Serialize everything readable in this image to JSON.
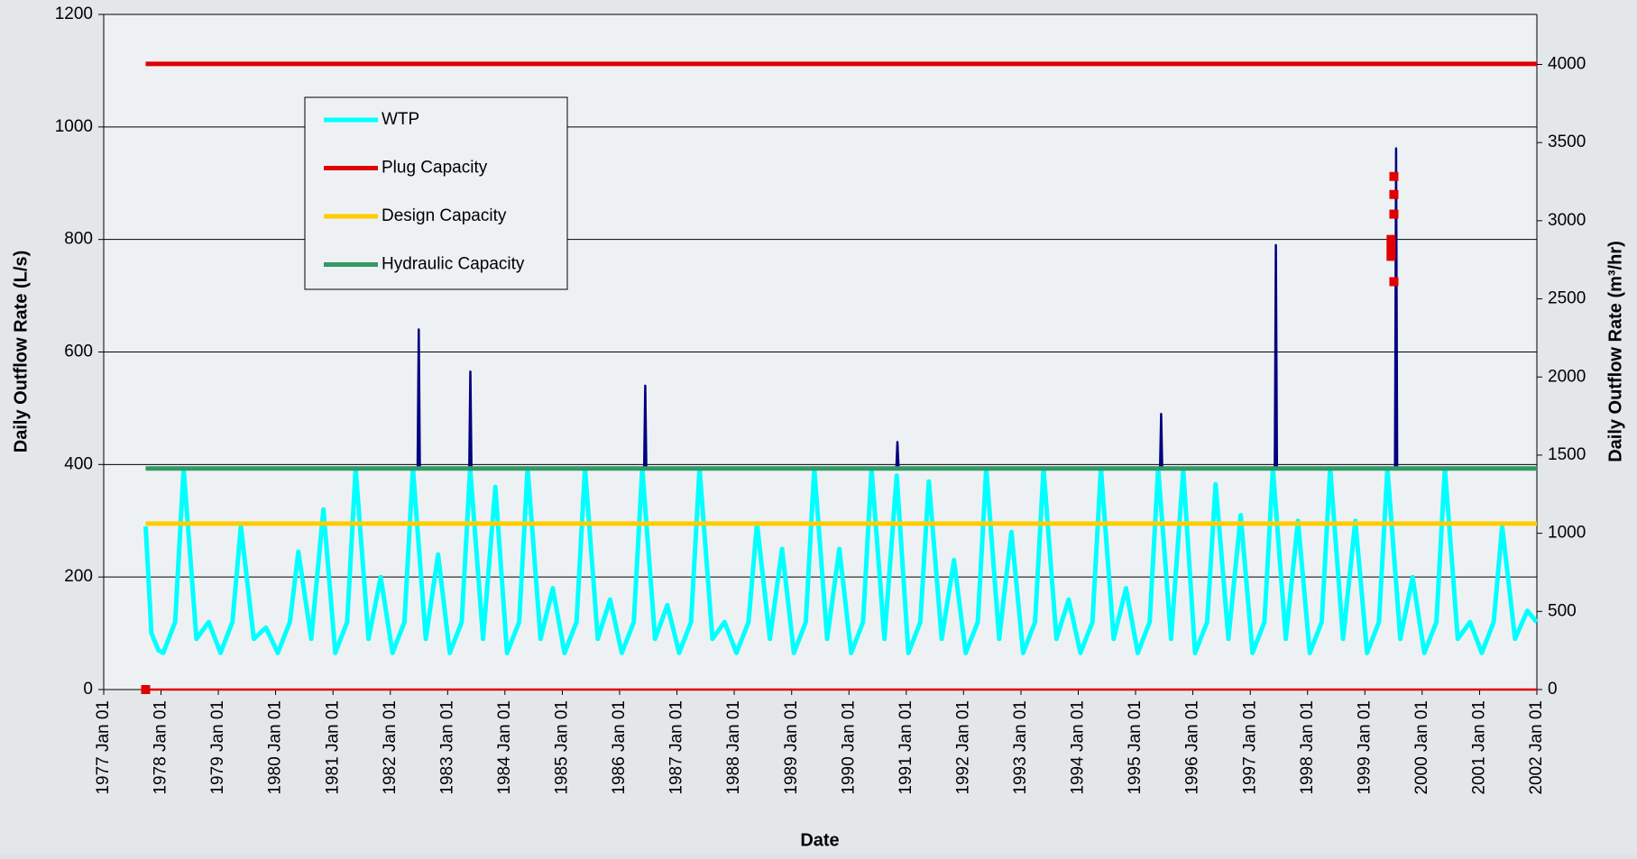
{
  "chart_data": {
    "type": "line",
    "x_label": "Date",
    "y_label": "Daily Outflow Rate (L/s)",
    "y2_label": "Daily Outflow Rate (m³/hr)",
    "xlim": [
      "1977-01-01",
      "2002-01-01"
    ],
    "xticks": [
      {
        "value": "1977-01-01",
        "label": "1977 Jan 01"
      },
      {
        "value": "1978-01-01",
        "label": "1978 Jan 01"
      },
      {
        "value": "1979-01-01",
        "label": "1979 Jan 01"
      },
      {
        "value": "1980-01-01",
        "label": "1980 Jan 01"
      },
      {
        "value": "1981-01-01",
        "label": "1981 Jan 01"
      },
      {
        "value": "1982-01-01",
        "label": "1982 Jan 01"
      },
      {
        "value": "1983-01-01",
        "label": "1983 Jan 01"
      },
      {
        "value": "1984-01-01",
        "label": "1984 Jan 01"
      },
      {
        "value": "1985-01-01",
        "label": "1985 Jan 01"
      },
      {
        "value": "1986-01-01",
        "label": "1986 Jan 01"
      },
      {
        "value": "1987-01-01",
        "label": "1987 Jan 01"
      },
      {
        "value": "1988-01-01",
        "label": "1988 Jan 01"
      },
      {
        "value": "1989-01-01",
        "label": "1989 Jan 01"
      },
      {
        "value": "1990-01-01",
        "label": "1990 Jan 01"
      },
      {
        "value": "1991-01-01",
        "label": "1991 Jan 01"
      },
      {
        "value": "1992-01-01",
        "label": "1992 Jan 01"
      },
      {
        "value": "1993-01-01",
        "label": "1993 Jan 01"
      },
      {
        "value": "1994-01-01",
        "label": "1994 Jan 01"
      },
      {
        "value": "1995-01-01",
        "label": "1995 Jan 01"
      },
      {
        "value": "1996-01-01",
        "label": "1996 Jan 01"
      },
      {
        "value": "1997-01-01",
        "label": "1997 Jan 01"
      },
      {
        "value": "1998-01-01",
        "label": "1998 Jan 01"
      },
      {
        "value": "1999-01-01",
        "label": "1999 Jan 01"
      },
      {
        "value": "2000-01-01",
        "label": "2000 Jan 01"
      },
      {
        "value": "2001-01-01",
        "label": "2001 Jan 01"
      },
      {
        "value": "2002-01-01",
        "label": "2002 Jan 01"
      }
    ],
    "ylim": [
      0,
      1200
    ],
    "yticks": [
      0,
      200,
      400,
      600,
      800,
      1000,
      1200
    ],
    "y2lim": [
      0,
      4320
    ],
    "y2ticks": [
      0,
      500,
      1000,
      1500,
      2000,
      2500,
      3000,
      3500,
      4000
    ],
    "grid": true,
    "series": [
      {
        "color": "#000080",
        "x": [
          "1982-06-24",
          "1982-07-01",
          "1982-07-08",
          "1982-08-01",
          "1983-05-19",
          "1983-05-26",
          "1983-06-02",
          "1983-07-01",
          "1986-06-06",
          "1986-06-13",
          "1986-06-20",
          "1986-07-15",
          "1990-10-30",
          "1990-11-06",
          "1990-11-13",
          "1990-12-01",
          "1995-06-06",
          "1995-06-13",
          "1995-06-20",
          "1995-07-15",
          "1997-06-06",
          "1997-06-13",
          "1997-06-20",
          "1997-07-15",
          "1999-07-12",
          "1999-07-19",
          "1999-07-26"
        ],
        "values": [
          393,
          640,
          393,
          null,
          393,
          565,
          393,
          null,
          393,
          540,
          393,
          null,
          393,
          440,
          393,
          null,
          393,
          490,
          393,
          null,
          393,
          790,
          393,
          null,
          393,
          962,
          393
        ]
      },
      {
        "name": "WTP",
        "color": "#00ffff",
        "x": [
          "1977-09-25",
          "1977-11-01",
          "1977-12-15",
          "1978-01-15",
          "1978-04-01",
          "1978-05-25",
          "1978-08-15",
          "1978-11-01",
          "1979-01-15",
          "1979-04-01",
          "1979-05-25",
          "1979-08-15",
          "1979-11-01",
          "1980-01-15",
          "1980-04-01",
          "1980-05-25",
          "1980-08-15",
          "1980-11-01",
          "1981-01-15",
          "1981-04-01",
          "1981-05-25",
          "1981-08-15",
          "1981-11-01",
          "1982-01-15",
          "1982-04-01",
          "1982-05-25",
          "1982-08-15",
          "1982-11-01",
          "1983-01-15",
          "1983-04-01",
          "1983-05-25",
          "1983-08-15",
          "1983-11-01",
          "1984-01-15",
          "1984-04-01",
          "1984-05-25",
          "1984-08-15",
          "1984-11-01",
          "1985-01-15",
          "1985-04-01",
          "1985-05-25",
          "1985-08-15",
          "1985-11-01",
          "1986-01-15",
          "1986-04-01",
          "1986-05-25",
          "1986-08-15",
          "1986-11-01",
          "1987-01-15",
          "1987-04-01",
          "1987-05-25",
          "1987-08-15",
          "1987-11-01",
          "1988-01-15",
          "1988-04-01",
          "1988-05-25",
          "1988-08-15",
          "1988-11-01",
          "1989-01-15",
          "1989-04-01",
          "1989-05-25",
          "1989-08-15",
          "1989-11-01",
          "1990-01-15",
          "1990-04-01",
          "1990-05-25",
          "1990-08-15",
          "1990-11-01",
          "1991-01-15",
          "1991-04-01",
          "1991-05-25",
          "1991-08-15",
          "1991-11-01",
          "1992-01-15",
          "1992-04-01",
          "1992-05-25",
          "1992-08-15",
          "1992-11-01",
          "1993-01-15",
          "1993-04-01",
          "1993-05-25",
          "1993-08-15",
          "1993-11-01",
          "1994-01-15",
          "1994-04-01",
          "1994-05-25",
          "1994-08-15",
          "1994-11-01",
          "1995-01-15",
          "1995-04-01",
          "1995-05-25",
          "1995-08-15",
          "1995-11-01",
          "1996-01-15",
          "1996-04-01",
          "1996-05-25",
          "1996-08-15",
          "1996-11-01",
          "1997-01-15",
          "1997-04-01",
          "1997-05-25",
          "1997-08-15",
          "1997-11-01",
          "1998-01-15",
          "1998-04-01",
          "1998-05-25",
          "1998-08-15",
          "1998-11-01",
          "1999-01-15",
          "1999-04-01",
          "1999-05-25",
          "1999-08-15",
          "1999-11-01",
          "2000-01-15",
          "2000-04-01",
          "2000-05-25",
          "2000-08-15",
          "2000-11-01",
          "2001-01-15",
          "2001-04-01",
          "2001-05-25",
          "2001-08-15",
          "2001-11-01",
          "2001-12-31"
        ],
        "values": [
          290,
          100,
          70,
          65,
          120,
          393,
          90,
          120,
          65,
          120,
          290,
          90,
          110,
          65,
          120,
          245,
          90,
          320,
          65,
          120,
          393,
          90,
          200,
          65,
          120,
          393,
          90,
          240,
          65,
          120,
          393,
          90,
          360,
          65,
          120,
          393,
          90,
          180,
          65,
          120,
          393,
          90,
          160,
          65,
          120,
          393,
          90,
          150,
          65,
          120,
          393,
          90,
          120,
          65,
          120,
          295,
          90,
          250,
          65,
          120,
          393,
          90,
          250,
          65,
          120,
          393,
          90,
          380,
          65,
          120,
          370,
          90,
          230,
          65,
          120,
          393,
          90,
          280,
          65,
          120,
          393,
          90,
          160,
          65,
          120,
          393,
          90,
          180,
          65,
          120,
          393,
          90,
          390,
          65,
          120,
          365,
          90,
          310,
          65,
          120,
          393,
          90,
          300,
          65,
          120,
          393,
          90,
          300,
          65,
          120,
          393,
          90,
          200,
          65,
          120,
          393,
          90,
          120,
          65,
          120,
          290,
          90,
          140,
          120
        ]
      },
      {
        "name": "Plug Capacity",
        "color": "#e00000",
        "x": [
          "1977-09-25",
          "2002-01-01"
        ],
        "values": [
          1112,
          1112
        ]
      },
      {
        "name": "Design Capacity",
        "color": "#ffcc00",
        "x": [
          "1977-09-25",
          "2002-01-01"
        ],
        "values": [
          295,
          295
        ]
      },
      {
        "name": "Hydraulic Capacity",
        "color": "#339966",
        "x": [
          "1977-09-25",
          "2002-01-01"
        ],
        "values": [
          393,
          393
        ]
      },
      {
        "color": "#e00000",
        "x": [
          "1977-09-25",
          "2002-01-01"
        ],
        "values": [
          0,
          0
        ]
      },
      {
        "color": "#e00000",
        "marker": "square",
        "line": false,
        "x": [
          "1977-09-25",
          "1999-06-17",
          "1999-06-17",
          "1999-06-17",
          "1999-07-05",
          "1999-07-05",
          "1999-07-05",
          "1999-07-05"
        ],
        "values": [
          0,
          770,
          785,
          800,
          725,
          845,
          880,
          912
        ]
      }
    ]
  }
}
